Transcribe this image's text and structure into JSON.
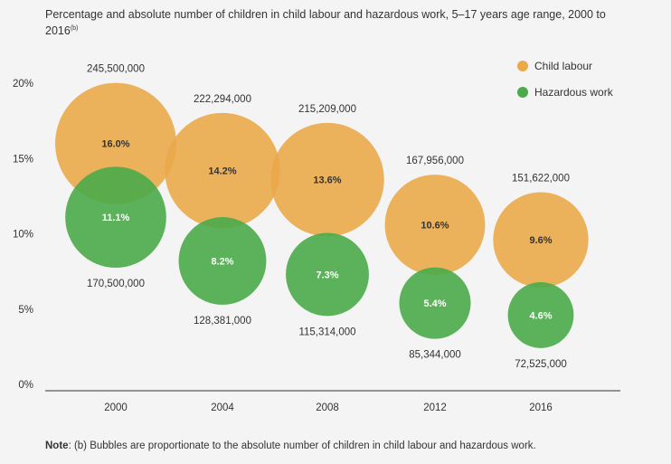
{
  "title": "Percentage and absolute number of children in child labour and hazardous work, 5–17 years age range, 2000 to 2016",
  "title_note_marker": "(b)",
  "note": {
    "prefix": "Note",
    "text": ": (b) Bubbles are proportionate to the absolute number of children in child labour and hazardous work."
  },
  "chart_data": {
    "type": "bubble",
    "categories": [
      "2000",
      "2004",
      "2008",
      "2012",
      "2016"
    ],
    "ylim": [
      0,
      20
    ],
    "yticks": [
      "0%",
      "5%",
      "10%",
      "15%",
      "20%"
    ],
    "legend_position": "top-right",
    "series": [
      {
        "name": "Child labour",
        "color": "#eaaa4a",
        "text_color": "#333333",
        "percent": [
          16.0,
          14.2,
          13.6,
          10.6,
          9.6
        ],
        "percent_labels": [
          "16.0%",
          "14.2%",
          "13.6%",
          "10.6%",
          "9.6%"
        ],
        "absolute": [
          245500000,
          222294000,
          215209000,
          167956000,
          151622000
        ],
        "absolute_labels": [
          "245,500,000",
          "222,294,000",
          "215,209,000",
          "167,956,000",
          "151,622,000"
        ]
      },
      {
        "name": "Hazardous work",
        "color": "#4aab4a",
        "text_color": "#ffffff",
        "percent": [
          11.1,
          8.2,
          7.3,
          5.4,
          4.6
        ],
        "percent_labels": [
          "11.1%",
          "8.2%",
          "7.3%",
          "5.4%",
          "4.6%"
        ],
        "absolute": [
          170500000,
          128381000,
          115314000,
          85344000,
          72525000
        ],
        "absolute_labels": [
          "170,500,000",
          "128,381,000",
          "115,314,000",
          "85,344,000",
          "72,525,000"
        ]
      }
    ]
  }
}
